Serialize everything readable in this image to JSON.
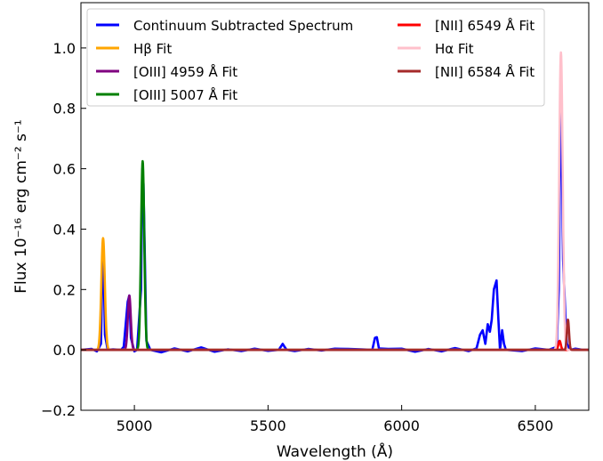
{
  "chart_data": {
    "type": "line",
    "xlabel": "Wavelength (Å)",
    "ylabel": "Flux 10⁻¹⁶ erg cm⁻² s⁻¹",
    "xlim": [
      4800,
      6700
    ],
    "ylim": [
      -0.2,
      1.15
    ],
    "xticks": [
      5000,
      5500,
      6000,
      6500
    ],
    "xtick_labels": [
      "5000",
      "5500",
      "6000",
      "6500"
    ],
    "yticks": [
      -0.2,
      0.0,
      0.2,
      0.4,
      0.6,
      0.8,
      1.0
    ],
    "ytick_labels": [
      "−0.2",
      "0.0",
      "0.2",
      "0.4",
      "0.6",
      "0.8",
      "1.0"
    ],
    "grid": false,
    "legend_position": "top",
    "series": [
      {
        "name": "Continuum Subtracted Spectrum",
        "color": "#0000ff",
        "x": [
          4800,
          4840,
          4860,
          4875,
          4881,
          4884,
          4890,
          4900,
          4920,
          4950,
          4960,
          4975,
          4981,
          4987,
          5000,
          5010,
          5025,
          5030,
          5034,
          5045,
          5060,
          5100,
          5150,
          5200,
          5250,
          5300,
          5350,
          5400,
          5450,
          5500,
          5540,
          5555,
          5562,
          5570,
          5600,
          5650,
          5700,
          5750,
          5800,
          5850,
          5890,
          5900,
          5907,
          5915,
          5950,
          6000,
          6050,
          6100,
          6150,
          6200,
          6250,
          6280,
          6293,
          6303,
          6313,
          6322,
          6330,
          6337,
          6345,
          6355,
          6362,
          6368,
          6376,
          6383,
          6390,
          6450,
          6500,
          6550,
          6580,
          6588,
          6596,
          6604,
          6612,
          6618,
          6630,
          6650,
          6680,
          6700
        ],
        "y": [
          0.0,
          0.003,
          -0.005,
          0.02,
          0.3,
          0.35,
          0.05,
          0.0,
          0.002,
          0.0,
          0.01,
          0.16,
          0.18,
          0.04,
          -0.005,
          0.0,
          0.2,
          0.6,
          0.55,
          0.03,
          0.0,
          -0.008,
          0.005,
          -0.005,
          0.008,
          -0.006,
          0.002,
          -0.004,
          0.004,
          -0.003,
          0.0,
          0.02,
          0.01,
          0.0,
          -0.004,
          0.003,
          -0.002,
          0.004,
          0.003,
          0.002,
          0.0,
          0.04,
          0.042,
          0.005,
          0.003,
          0.004,
          -0.006,
          0.003,
          -0.005,
          0.006,
          -0.004,
          0.005,
          0.05,
          0.065,
          0.02,
          0.085,
          0.06,
          0.1,
          0.2,
          0.23,
          0.1,
          0.0,
          0.065,
          0.02,
          0.0,
          -0.004,
          0.005,
          0.0,
          0.01,
          0.2,
          0.96,
          0.3,
          0.12,
          0.02,
          0.0,
          0.004,
          0.0,
          0.0
        ]
      },
      {
        "name": "Hβ Fit",
        "color": "#ffa500",
        "center": 4883,
        "amp": 0.37,
        "sigma": 6.5
      },
      {
        "name": "[OIII] 4959 Å Fit",
        "color": "#800080",
        "center": 4981,
        "amp": 0.18,
        "sigma": 5.5
      },
      {
        "name": "[OIII] 5007 Å Fit",
        "color": "#008000",
        "center": 5031,
        "amp": 0.625,
        "sigma": 6.0
      },
      {
        "name": "[NII] 6549 Å Fit",
        "color": "#ff0000",
        "center": 6591,
        "amp": 0.03,
        "sigma": 4.5
      },
      {
        "name": "Hα Fit",
        "color": "#ffc0cb",
        "center": 6596,
        "amp": 0.985,
        "sigma": 6.5
      },
      {
        "name": "[NII] 6584 Å Fit",
        "color": "#a52a2a",
        "center": 6622,
        "amp": 0.1,
        "sigma": 4.0
      }
    ]
  }
}
